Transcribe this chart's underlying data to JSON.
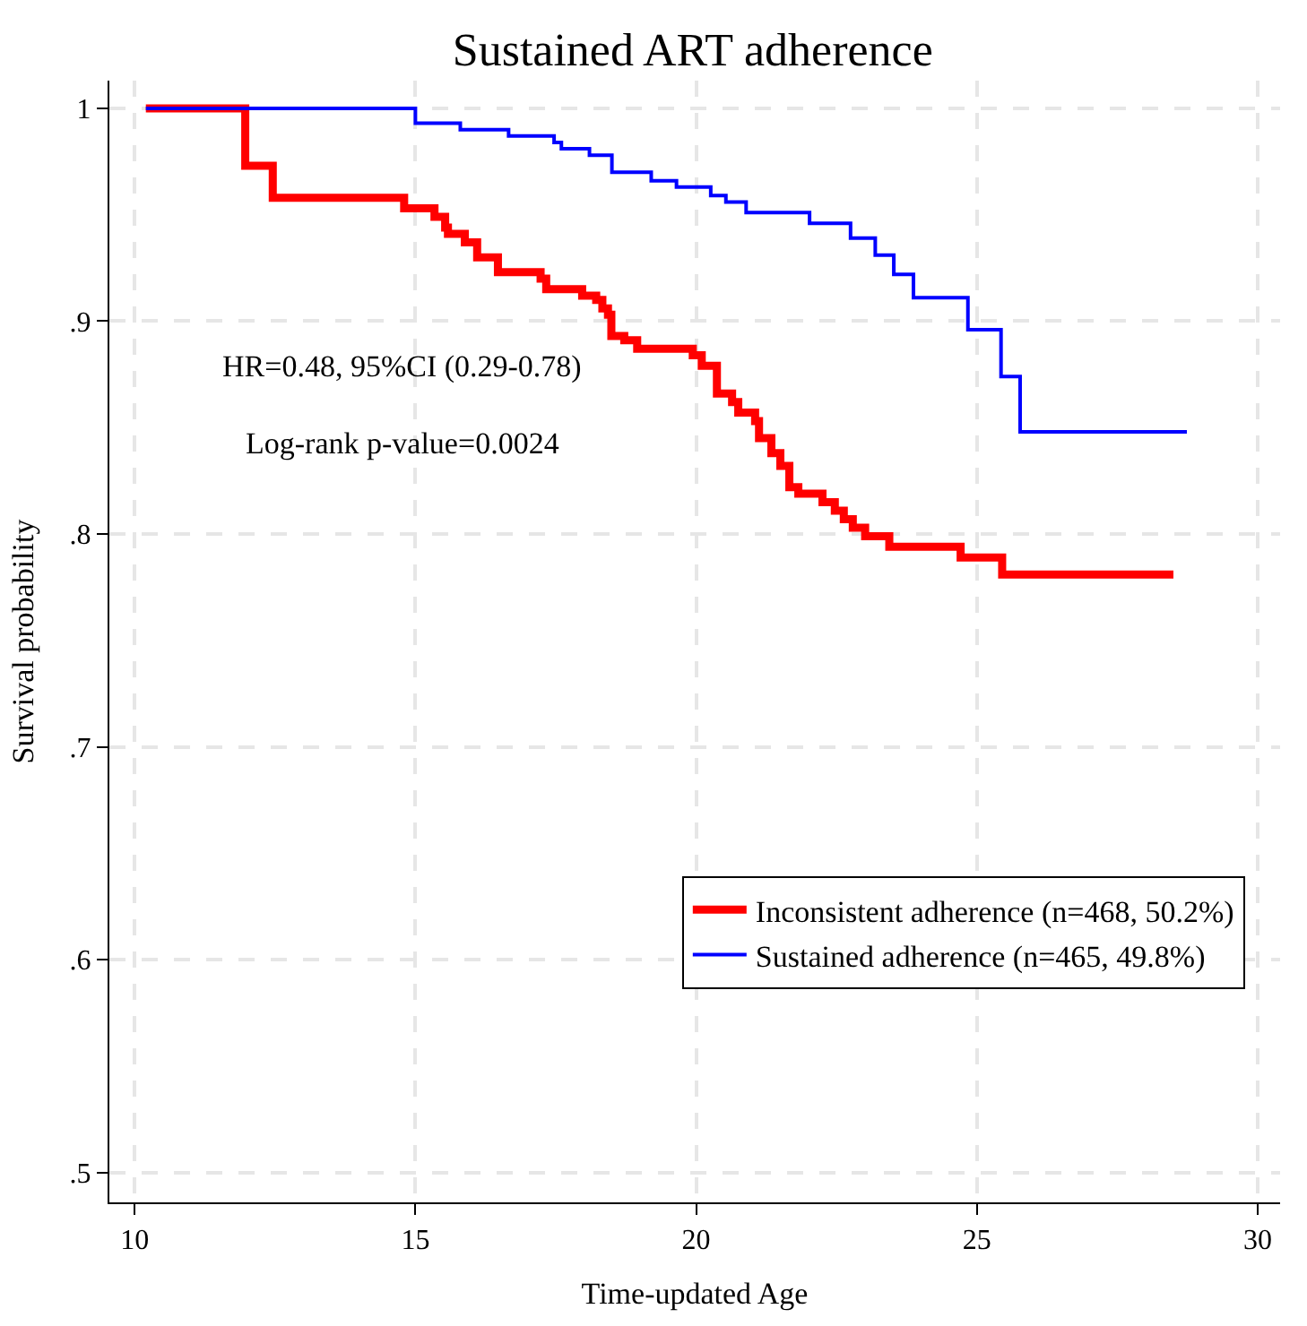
{
  "chart_data": {
    "type": "step",
    "title": "Sustained ART adherence",
    "xlabel": "Time-updated Age",
    "ylabel": "Survival probability",
    "xlim": [
      9.55,
      30.4
    ],
    "xticks": [
      10,
      15,
      20,
      25,
      30
    ],
    "ylim": [
      0.486,
      1.013
    ],
    "yticks": [
      {
        "value": 0.5,
        "label": ".5"
      },
      {
        "value": 0.6,
        "label": ".6"
      },
      {
        "value": 0.7,
        "label": ".7"
      },
      {
        "value": 0.8,
        "label": ".8"
      },
      {
        "value": 0.9,
        "label": ".9"
      },
      {
        "value": 1,
        "label": "1"
      }
    ],
    "grid": true,
    "legend": "bottom right",
    "line_style": "solid",
    "marker": "none",
    "annotations": [
      "HR=0.48, 95%CI (0.29-0.78)",
      "Log-rank p-value=0.0024"
    ],
    "series": [
      {
        "name": "Inconsistent adherence (n=468, 50.2%)",
        "color": "#ff0000",
        "x": [
          10.2,
          11.97,
          12.46,
          14.8,
          15.34,
          15.53,
          15.58,
          15.88,
          16.1,
          16.47,
          17.23,
          17.33,
          17.97,
          18.22,
          18.33,
          18.43,
          18.49,
          18.72,
          18.95,
          19.94,
          20.1,
          20.37,
          20.64,
          20.75,
          21.05,
          21.12,
          21.34,
          21.5,
          21.66,
          21.82,
          22.25,
          22.47,
          22.63,
          22.79,
          23.01,
          23.44,
          24.71,
          25.45,
          28.5
        ],
        "values": [
          1,
          0.973,
          0.958,
          0.953,
          0.949,
          0.944,
          0.941,
          0.937,
          0.93,
          0.923,
          0.92,
          0.915,
          0.912,
          0.91,
          0.906,
          0.903,
          0.893,
          0.891,
          0.887,
          0.884,
          0.879,
          0.866,
          0.862,
          0.857,
          0.853,
          0.845,
          0.838,
          0.832,
          0.822,
          0.819,
          0.815,
          0.811,
          0.807,
          0.803,
          0.799,
          0.794,
          0.789,
          0.781,
          0.781
        ]
      },
      {
        "name": "Sustained adherence (n=465, 49.8%)",
        "color": "#0000ff",
        "x": [
          10.2,
          15.0,
          15.8,
          16.66,
          17.47,
          17.6,
          18.1,
          18.5,
          19.2,
          19.65,
          20.26,
          20.53,
          20.89,
          22.02,
          22.75,
          23.19,
          23.52,
          23.87,
          24.84,
          25.43,
          25.77,
          28.74
        ],
        "values": [
          1,
          0.993,
          0.99,
          0.987,
          0.984,
          0.981,
          0.978,
          0.97,
          0.966,
          0.963,
          0.959,
          0.956,
          0.951,
          0.946,
          0.939,
          0.931,
          0.922,
          0.911,
          0.896,
          0.874,
          0.848,
          0.848
        ]
      }
    ]
  }
}
